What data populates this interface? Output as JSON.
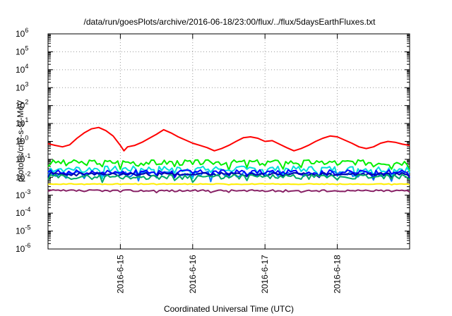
{
  "chart_data": {
    "type": "line",
    "title": "/data/run/goesPlots/archive/2016-06-18/23:00/flux/../flux/5daysEarthFluxes.txt",
    "xlabel": "Coordinated Universal Time (UTC)",
    "ylabel": "protons/cm²-s-sr-MeV",
    "x_unit": "days since 2016-06-14 00:00 UTC",
    "xlim": [
      0,
      5
    ],
    "x_ticks": [
      {
        "x": 1,
        "label": "2016-6-15"
      },
      {
        "x": 2,
        "label": "2016-6-16"
      },
      {
        "x": 3,
        "label": "2016-6-17"
      },
      {
        "x": 4,
        "label": "2016-6-18"
      }
    ],
    "y_scale": "log",
    "ylim": [
      1e-06,
      1000000.0
    ],
    "y_ticks": [
      {
        "exp": "-6"
      },
      {
        "exp": "-5"
      },
      {
        "exp": "-4"
      },
      {
        "exp": "-3"
      },
      {
        "exp": "-2"
      },
      {
        "exp": "-1"
      },
      {
        "exp": "0"
      },
      {
        "exp": "1"
      },
      {
        "exp": "2"
      },
      {
        "exp": "3"
      },
      {
        "exp": "4"
      },
      {
        "exp": "5"
      },
      {
        "exp": "6"
      }
    ],
    "grid": true,
    "legend": "none",
    "series": [
      {
        "color": "#ff0000",
        "points": [
          [
            0.0,
            0.75
          ],
          [
            0.1,
            0.6
          ],
          [
            0.2,
            0.5
          ],
          [
            0.3,
            0.65
          ],
          [
            0.4,
            1.5
          ],
          [
            0.5,
            3.0
          ],
          [
            0.6,
            5.0
          ],
          [
            0.7,
            6.0
          ],
          [
            0.8,
            4.0
          ],
          [
            0.9,
            2.0
          ],
          [
            1.0,
            0.6
          ],
          [
            1.05,
            0.3
          ],
          [
            1.1,
            0.5
          ],
          [
            1.2,
            0.6
          ],
          [
            1.3,
            0.9
          ],
          [
            1.4,
            1.5
          ],
          [
            1.5,
            2.5
          ],
          [
            1.6,
            4.5
          ],
          [
            1.7,
            3.0
          ],
          [
            1.8,
            1.8
          ],
          [
            1.9,
            1.2
          ],
          [
            2.0,
            0.8
          ],
          [
            2.1,
            0.6
          ],
          [
            2.2,
            0.45
          ],
          [
            2.3,
            0.3
          ],
          [
            2.4,
            0.4
          ],
          [
            2.5,
            0.6
          ],
          [
            2.6,
            1.0
          ],
          [
            2.7,
            1.6
          ],
          [
            2.8,
            1.8
          ],
          [
            2.9,
            1.5
          ],
          [
            3.0,
            1.0
          ],
          [
            3.1,
            1.1
          ],
          [
            3.2,
            0.7
          ],
          [
            3.3,
            0.45
          ],
          [
            3.4,
            0.3
          ],
          [
            3.5,
            0.4
          ],
          [
            3.6,
            0.6
          ],
          [
            3.7,
            1.0
          ],
          [
            3.8,
            1.5
          ],
          [
            3.9,
            2.0
          ],
          [
            4.0,
            1.8
          ],
          [
            4.1,
            1.2
          ],
          [
            4.2,
            0.8
          ],
          [
            4.3,
            0.5
          ],
          [
            4.4,
            0.4
          ],
          [
            4.5,
            0.5
          ],
          [
            4.6,
            0.8
          ],
          [
            4.7,
            1.0
          ],
          [
            4.8,
            0.9
          ],
          [
            4.9,
            0.7
          ],
          [
            5.0,
            0.6
          ]
        ]
      },
      {
        "color": "#00ee00",
        "level": 0.07,
        "wiggle": 0.35,
        "seed": 3
      },
      {
        "color": "#00dddd",
        "level": 0.03,
        "wiggle": 0.4,
        "seed": 7
      },
      {
        "color": "#0077ff",
        "level": 0.016,
        "wiggle": 0.35,
        "seed": 11
      },
      {
        "color": "#0000ff",
        "level": 0.02,
        "wiggle": 0.3,
        "seed": 17
      },
      {
        "color": "#0000aa",
        "level": 0.015,
        "wiggle": 0.2,
        "seed": 23
      },
      {
        "color": "#00aa66",
        "level": 0.011,
        "wiggle": 0.3,
        "seed": 29
      },
      {
        "color": "#ffee00",
        "level": 0.0042,
        "wiggle": 0.05,
        "seed": 31
      },
      {
        "color": "#882266",
        "level": 0.0018,
        "wiggle": 0.12,
        "seed": 37
      }
    ]
  }
}
